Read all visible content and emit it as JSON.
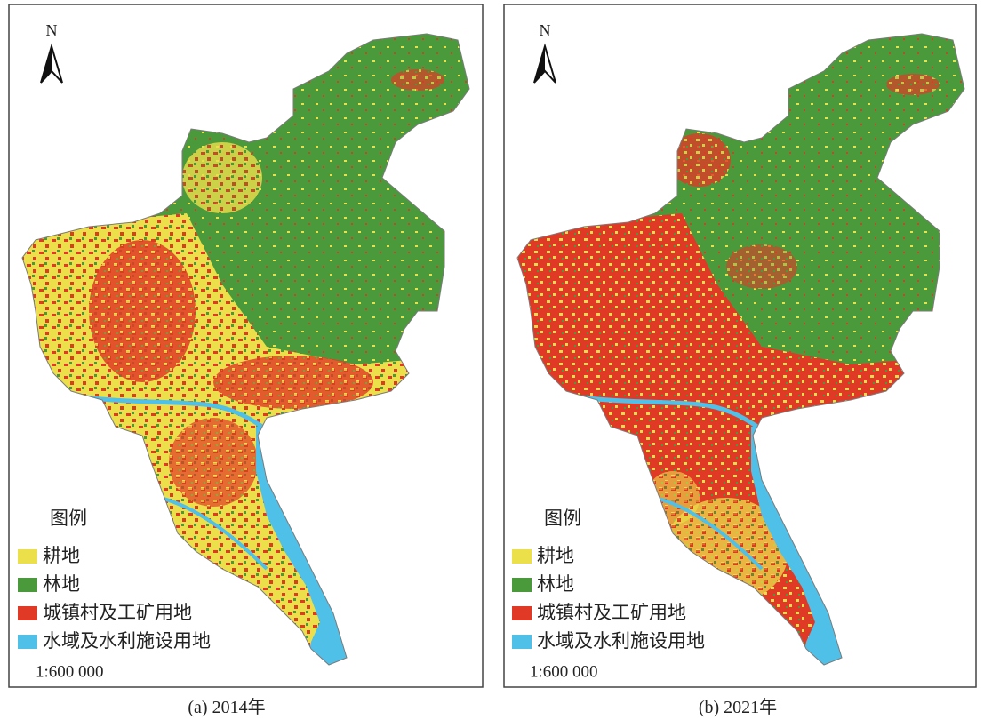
{
  "panels": [
    {
      "north": "N",
      "legend_title": "图例",
      "legend": [
        {
          "label": "耕地",
          "color": "#ece04a"
        },
        {
          "label": "林地",
          "color": "#4a9a3c"
        },
        {
          "label": "城镇村及工矿用地",
          "color": "#e03a26"
        },
        {
          "label": "水域及水利施设用地",
          "color": "#4fc0e8"
        }
      ],
      "scale": "1:600 000",
      "caption": "(a) 2014年"
    },
    {
      "north": "N",
      "legend_title": "图例",
      "legend": [
        {
          "label": "耕地",
          "color": "#ece04a"
        },
        {
          "label": "林地",
          "color": "#4a9a3c"
        },
        {
          "label": "城镇村及工矿用地",
          "color": "#e03a26"
        },
        {
          "label": "水域及水利施设用地",
          "color": "#4fc0e8"
        }
      ],
      "scale": "1:600 000",
      "caption": "(b) 2021年"
    }
  ]
}
